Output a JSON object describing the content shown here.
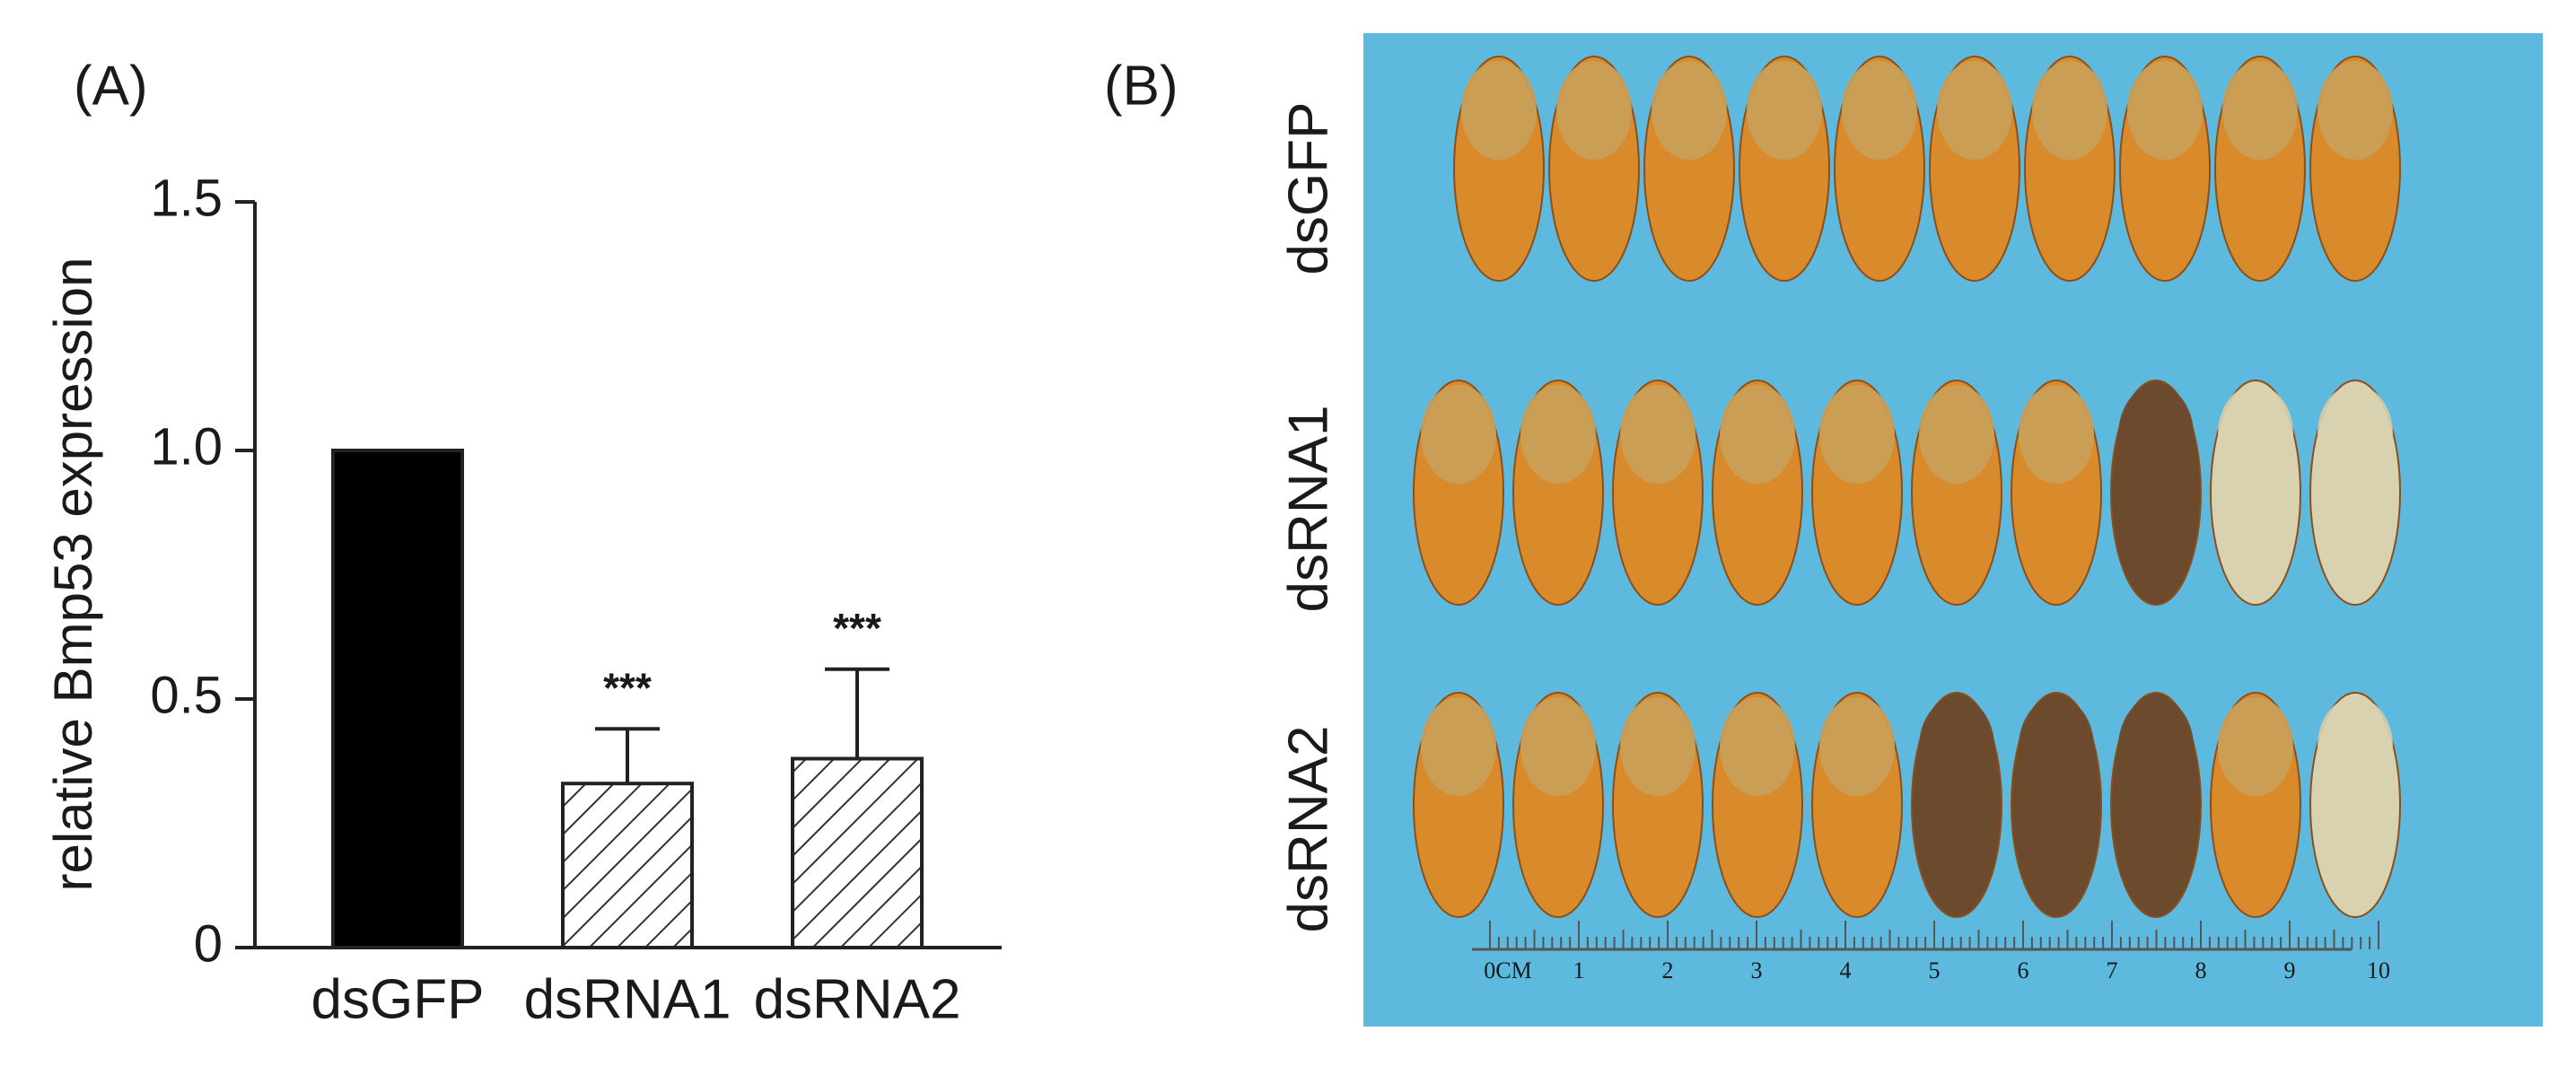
{
  "chart_data": {
    "type": "bar",
    "panel_label": "(A)",
    "y_label": "relative Bmp53 expression",
    "categories": [
      "dsGFP",
      "dsRNA1",
      "dsRNA2"
    ],
    "values": [
      1.0,
      0.33,
      0.38
    ],
    "errors": [
      0,
      0.11,
      0.18
    ],
    "significance": [
      null,
      "***",
      "***"
    ],
    "colors": [
      "#000000",
      "hatch",
      "hatch"
    ],
    "ylim": [
      0,
      1.5
    ],
    "yticks": [
      0,
      0.5,
      {
        "value": 1,
        "label": "1.0"
      },
      1.5
    ]
  },
  "photo": {
    "panel_label": "(B)",
    "row_labels": [
      "dsGFP",
      "dsRNA1",
      "dsRNA2"
    ],
    "ruler_labels": [
      "0CM",
      "1",
      "2",
      "3",
      "4",
      "5",
      "6",
      "7",
      "8",
      "9",
      "10"
    ]
  }
}
